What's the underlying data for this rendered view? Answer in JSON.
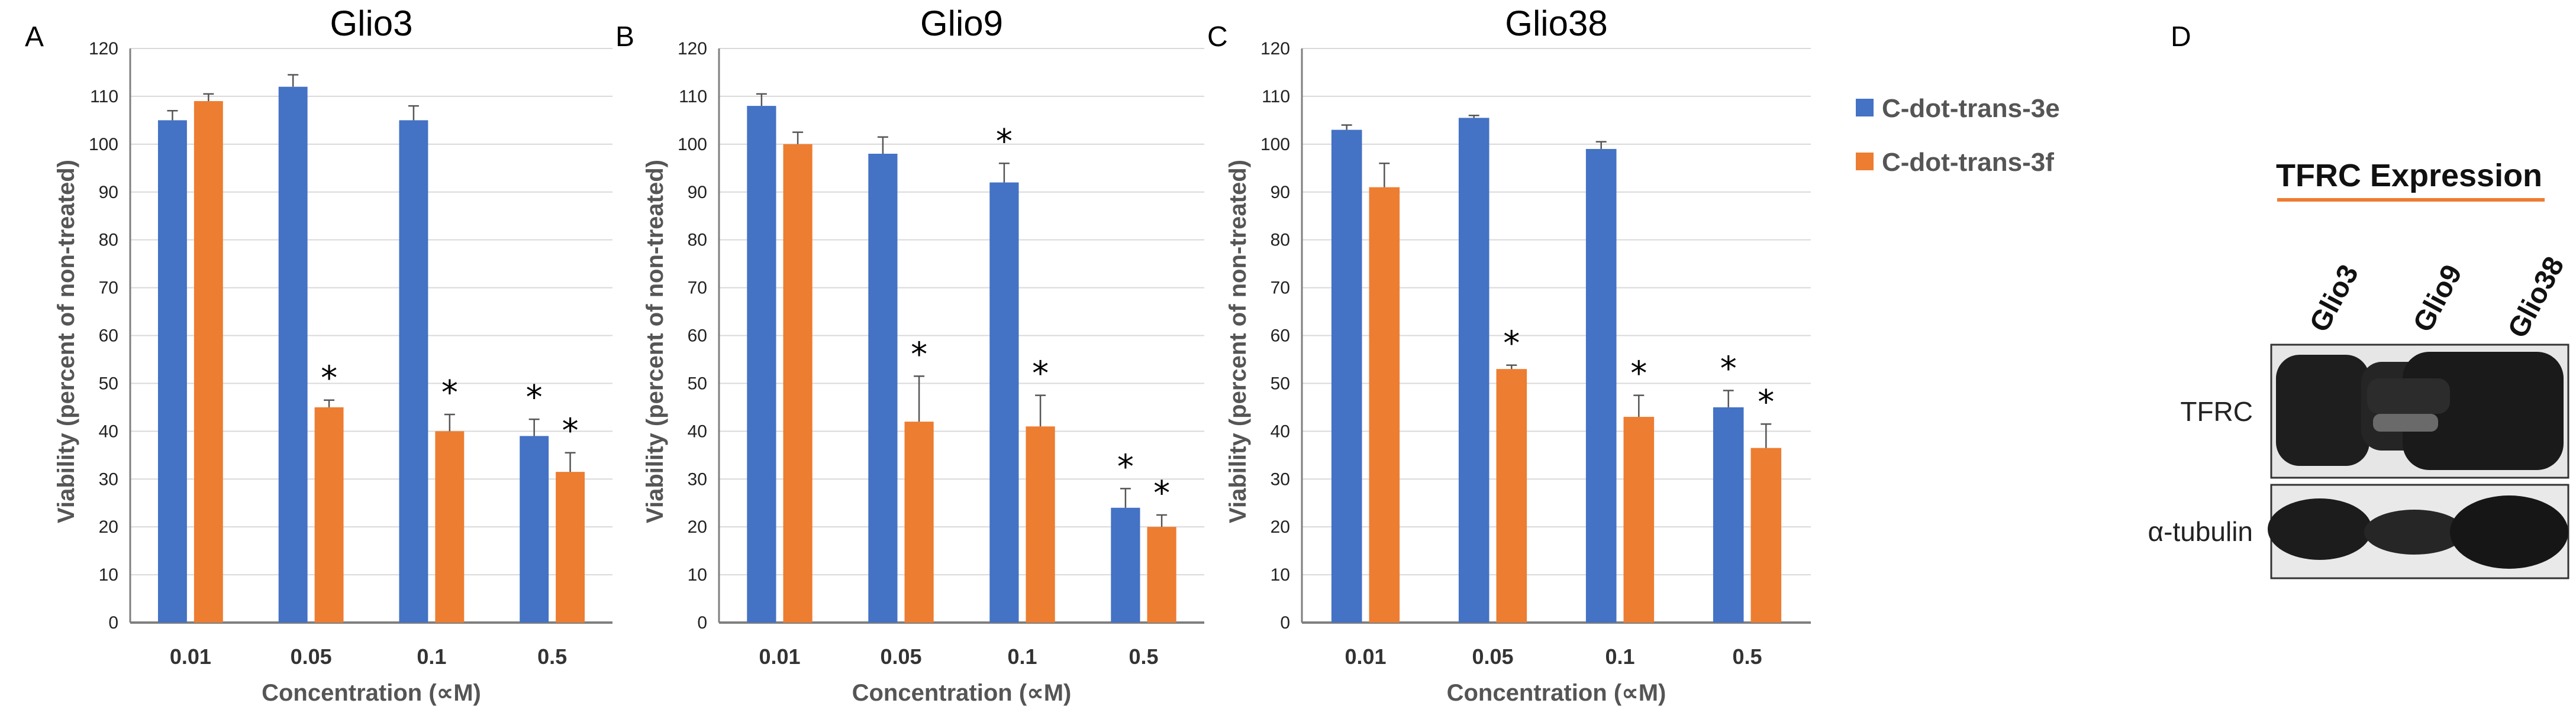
{
  "legend": {
    "series": [
      {
        "name": "C-dot-trans-3e",
        "color": "#4472C4"
      },
      {
        "name": "C-dot-trans-3f",
        "color": "#ED7D31"
      }
    ]
  },
  "chart_data": [
    {
      "panel": "A",
      "type": "bar",
      "title": "Glio3",
      "xlabel": "Concentration (∝M)",
      "ylabel": "Viability (percent of non-treated)",
      "ylim": [
        0,
        120
      ],
      "yticks": [
        0,
        10,
        20,
        30,
        40,
        50,
        60,
        70,
        80,
        90,
        100,
        110,
        120
      ],
      "grid": true,
      "categories": [
        "0.01",
        "0.05",
        "0.1",
        "0.5"
      ],
      "series": [
        {
          "name": "C-dot-trans-3e",
          "values": [
            105,
            112,
            105,
            39
          ],
          "errors": [
            2,
            2.5,
            3,
            3.5
          ],
          "significant": [
            false,
            false,
            false,
            true
          ]
        },
        {
          "name": "C-dot-trans-3f",
          "values": [
            109,
            45,
            40,
            31.5
          ],
          "errors": [
            1.5,
            1.5,
            3.5,
            4
          ],
          "significant": [
            false,
            true,
            true,
            true
          ]
        }
      ]
    },
    {
      "panel": "B",
      "type": "bar",
      "title": "Glio9",
      "xlabel": "Concentration (∝M)",
      "ylabel": "Viability (percent of non-treated)",
      "ylim": [
        0,
        120
      ],
      "yticks": [
        0,
        10,
        20,
        30,
        40,
        50,
        60,
        70,
        80,
        90,
        100,
        110,
        120
      ],
      "grid": true,
      "categories": [
        "0.01",
        "0.05",
        "0.1",
        "0.5"
      ],
      "series": [
        {
          "name": "C-dot-trans-3e",
          "values": [
            108,
            98,
            92,
            24
          ],
          "errors": [
            2.5,
            3.5,
            4,
            4
          ],
          "significant": [
            false,
            false,
            true,
            true
          ]
        },
        {
          "name": "C-dot-trans-3f",
          "values": [
            100,
            42,
            41,
            20
          ],
          "errors": [
            2.5,
            9.5,
            6.5,
            2.5
          ],
          "significant": [
            false,
            true,
            true,
            true
          ]
        }
      ]
    },
    {
      "panel": "C",
      "type": "bar",
      "title": "Glio38",
      "xlabel": "Concentration (∝M)",
      "ylabel": "Viability (percent of non-treated)",
      "ylim": [
        0,
        120
      ],
      "yticks": [
        0,
        10,
        20,
        30,
        40,
        50,
        60,
        70,
        80,
        90,
        100,
        110,
        120
      ],
      "grid": true,
      "categories": [
        "0.01",
        "0.05",
        "0.1",
        "0.5"
      ],
      "series": [
        {
          "name": "C-dot-trans-3e",
          "values": [
            103,
            105.5,
            99,
            45
          ],
          "errors": [
            1,
            0.5,
            1.5,
            3.5
          ],
          "significant": [
            false,
            false,
            false,
            true
          ]
        },
        {
          "name": "C-dot-trans-3f",
          "values": [
            91,
            53,
            43,
            36.5
          ],
          "errors": [
            5,
            0.8,
            4.5,
            5
          ],
          "significant": [
            false,
            true,
            true,
            true
          ]
        }
      ]
    }
  ],
  "western_blot": {
    "panel": "D",
    "title": "TFRC Expression",
    "lanes": [
      "Glio3",
      "Glio9",
      "Glio38"
    ],
    "rows": [
      "TFRC",
      "α-tubulin"
    ]
  }
}
